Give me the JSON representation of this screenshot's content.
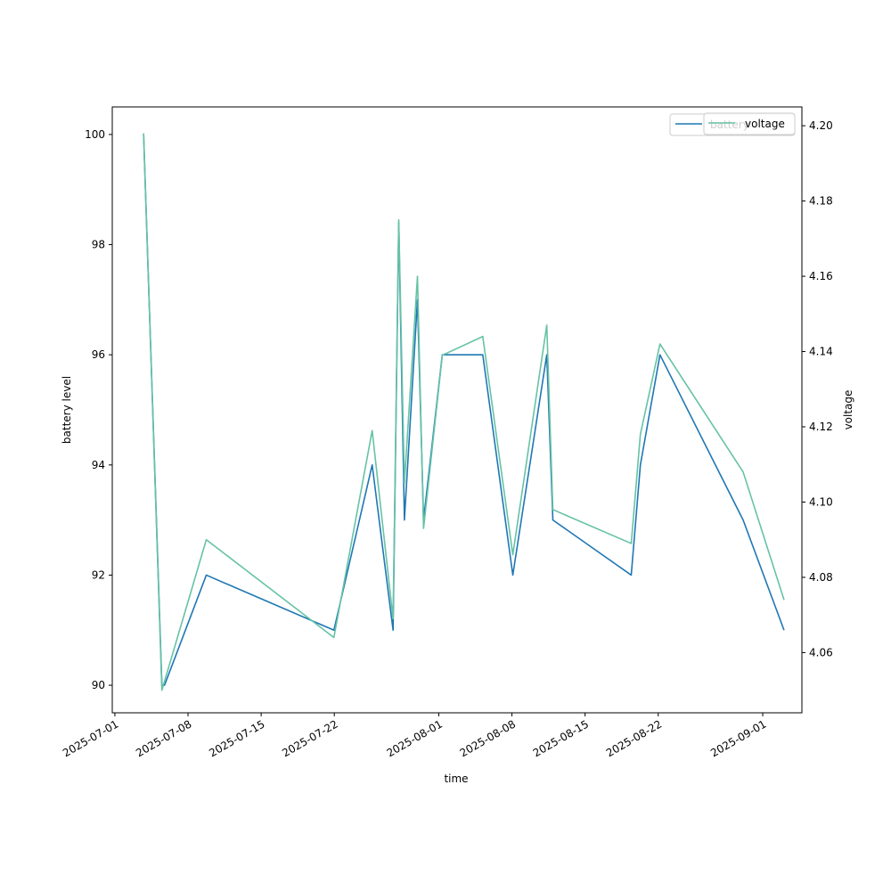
{
  "chart_data": {
    "type": "line",
    "xlabel": "time",
    "ylabel_left": "battery level",
    "ylabel_right": "voltage",
    "x_ticks": [
      "2025-07-01",
      "2025-07-08",
      "2025-07-15",
      "2025-07-22",
      "2025-08-01",
      "2025-08-08",
      "2025-08-15",
      "2025-08-22",
      "2025-09-01"
    ],
    "y_left_ticks": [
      "90",
      "92",
      "94",
      "96",
      "98",
      "100"
    ],
    "y_right_ticks": [
      "4.06",
      "4.08",
      "4.10",
      "4.12",
      "4.14",
      "4.16",
      "4.18",
      "4.20"
    ],
    "y_left_range": [
      89.5,
      100.5
    ],
    "y_right_range": [
      4.044,
      4.205
    ],
    "x_range": [
      "2025-06-30T18:00",
      "2025-09-04T18:00"
    ],
    "legend_location": "upper right (two overlapping legends)",
    "series": [
      {
        "name": "battery",
        "axis": "left",
        "color": "#1f77b4",
        "x": [
          "2025-07-03T18:00",
          "2025-07-05T12:00",
          "2025-07-05T18:00",
          "2025-07-09T18:00",
          "2025-07-21T23:00",
          "2025-07-25T15:00",
          "2025-07-27T15:00",
          "2025-07-28T04:00",
          "2025-07-28T17:00",
          "2025-07-29T23:00",
          "2025-07-30T13:00",
          "2025-08-01T08:00",
          "2025-08-05T05:00",
          "2025-08-08T02:00",
          "2025-08-11T08:00",
          "2025-08-11T22:00",
          "2025-08-19T10:00",
          "2025-08-20T07:00",
          "2025-08-22T04:00",
          "2025-08-30T03:00",
          "2025-09-03T01:00"
        ],
        "y": [
          100,
          90,
          90,
          92,
          91,
          94,
          91,
          98.4,
          93,
          97,
          93,
          96,
          96,
          92,
          96,
          93,
          92,
          94,
          96,
          93,
          91
        ]
      },
      {
        "name": "voltage",
        "axis": "right",
        "color": "#66c2a5",
        "x": [
          "2025-07-03T18:00",
          "2025-07-05T12:00",
          "2025-07-09T18:00",
          "2025-07-21T23:00",
          "2025-07-25T15:00",
          "2025-07-27T15:00",
          "2025-07-28T04:00",
          "2025-07-28T17:00",
          "2025-07-29T23:00",
          "2025-07-30T13:00",
          "2025-08-01T08:00",
          "2025-08-05T05:00",
          "2025-08-08T02:00",
          "2025-08-11T08:00",
          "2025-08-11T22:00",
          "2025-08-19T10:00",
          "2025-08-20T07:00",
          "2025-08-22T04:00",
          "2025-08-30T03:00",
          "2025-09-03T01:00"
        ],
        "y": [
          4.198,
          4.05,
          4.09,
          4.064,
          4.119,
          4.069,
          4.175,
          4.105,
          4.16,
          4.093,
          4.139,
          4.144,
          4.086,
          4.147,
          4.098,
          4.089,
          4.118,
          4.142,
          4.108,
          4.074
        ]
      }
    ]
  }
}
